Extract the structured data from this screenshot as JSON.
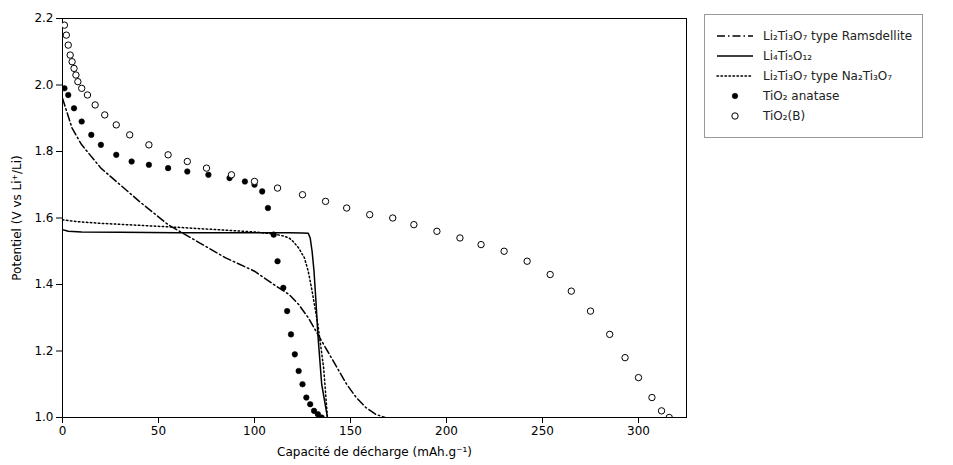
{
  "chart_data": {
    "type": "line",
    "xlabel": "Capacité de décharge (mAh.g⁻¹)",
    "ylabel": "Potentiel (V vs Li⁺/Li)",
    "xlim": [
      0,
      325
    ],
    "ylim": [
      1.0,
      2.2
    ],
    "xticks": [
      0,
      50,
      100,
      150,
      200,
      250,
      300
    ],
    "yticks": [
      {
        "value": 1.0,
        "label": "1.0"
      },
      1.2,
      1.4,
      1.6,
      1.8,
      {
        "value": 2.0,
        "label": "2.0"
      },
      2.2
    ],
    "grid": false,
    "legend": "right",
    "series": [
      {
        "name": "Li₂Ti₃O₇ type Ramsdellite",
        "type": "line",
        "color": "black",
        "line_style": "dashdot",
        "x": [
          0,
          5,
          10,
          20,
          30,
          40,
          55,
          70,
          85,
          100,
          110,
          118,
          123,
          128,
          133,
          138,
          143,
          148,
          153,
          158,
          163,
          168
        ],
        "values": [
          1.96,
          1.87,
          1.82,
          1.75,
          1.7,
          1.65,
          1.58,
          1.53,
          1.48,
          1.44,
          1.4,
          1.37,
          1.34,
          1.3,
          1.25,
          1.2,
          1.15,
          1.1,
          1.06,
          1.03,
          1.01,
          1.0
        ]
      },
      {
        "name": "Li₄Ti₅O₁₂",
        "type": "line",
        "color": "black",
        "line_style": "solid",
        "x": [
          0,
          3,
          10,
          30,
          60,
          100,
          118,
          125,
          128,
          129,
          130,
          131,
          132,
          133,
          135,
          138
        ],
        "values": [
          1.565,
          1.56,
          1.558,
          1.557,
          1.556,
          1.556,
          1.556,
          1.555,
          1.554,
          1.54,
          1.5,
          1.44,
          1.35,
          1.25,
          1.1,
          1.0
        ]
      },
      {
        "name": "Li₂Ti₃O₇ type Na₂Ti₃O₇",
        "type": "line",
        "color": "black",
        "line_style": "dotted",
        "x": [
          0,
          3,
          10,
          20,
          40,
          60,
          80,
          100,
          110,
          115,
          118,
          120,
          123,
          126,
          128,
          130,
          133,
          136,
          138
        ],
        "values": [
          1.595,
          1.592,
          1.588,
          1.584,
          1.578,
          1.572,
          1.565,
          1.558,
          1.552,
          1.546,
          1.54,
          1.53,
          1.51,
          1.48,
          1.44,
          1.38,
          1.28,
          1.15,
          1.0
        ]
      },
      {
        "name": "TiO₂ anatase",
        "type": "scatter",
        "color": "black",
        "marker": "circle",
        "x": [
          1,
          3,
          6,
          10,
          15,
          20,
          28,
          36,
          45,
          55,
          65,
          76,
          87,
          95,
          100,
          104,
          107,
          110,
          112,
          115,
          117,
          119,
          121,
          123,
          125,
          127,
          129,
          131,
          133,
          135
        ],
        "values": [
          1.99,
          1.97,
          1.93,
          1.89,
          1.85,
          1.82,
          1.79,
          1.77,
          1.76,
          1.75,
          1.74,
          1.73,
          1.72,
          1.71,
          1.7,
          1.68,
          1.63,
          1.55,
          1.47,
          1.39,
          1.32,
          1.25,
          1.19,
          1.14,
          1.1,
          1.06,
          1.04,
          1.02,
          1.01,
          1.0
        ]
      },
      {
        "name": "TiO₂(B)",
        "type": "scatter",
        "color": "black",
        "marker": "circle_open",
        "x": [
          1,
          2,
          3,
          4,
          5,
          6,
          7,
          8,
          10,
          13,
          17,
          22,
          28,
          35,
          45,
          55,
          65,
          75,
          88,
          100,
          112,
          125,
          137,
          148,
          160,
          172,
          183,
          195,
          207,
          218,
          230,
          242,
          254,
          265,
          275,
          285,
          293,
          300,
          307,
          312,
          316
        ],
        "values": [
          2.18,
          2.15,
          2.12,
          2.09,
          2.07,
          2.05,
          2.03,
          2.01,
          1.99,
          1.97,
          1.94,
          1.91,
          1.88,
          1.85,
          1.82,
          1.79,
          1.77,
          1.75,
          1.73,
          1.71,
          1.69,
          1.67,
          1.65,
          1.63,
          1.61,
          1.6,
          1.58,
          1.56,
          1.54,
          1.52,
          1.5,
          1.47,
          1.43,
          1.38,
          1.32,
          1.25,
          1.18,
          1.12,
          1.06,
          1.02,
          1.0
        ]
      }
    ]
  }
}
